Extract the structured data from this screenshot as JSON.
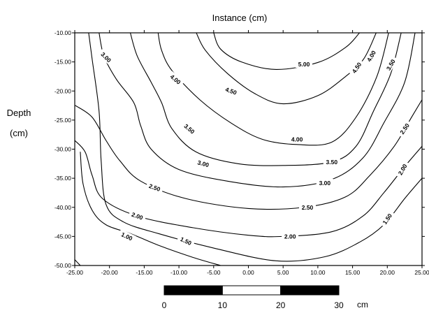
{
  "chart_data": {
    "type": "contour",
    "title": "Instance (cm)",
    "ylabel": [
      "Depth",
      "(cm)"
    ],
    "xlim": [
      -25,
      25
    ],
    "ylim": [
      -50,
      -10
    ],
    "x_ticks": [
      "-25.00",
      "-20.00",
      "-15.00",
      "-10.00",
      "-5.00",
      "0.00",
      "5.00",
      "10.00",
      "15.00",
      "20.00",
      "25.00"
    ],
    "y_ticks": [
      "-10.00",
      "-15.00",
      "-20.00",
      "-25.00",
      "-30.00",
      "-35.00",
      "-40.00",
      "-45.00",
      "-50.00"
    ],
    "contours": [
      {
        "level": "5.00",
        "points": [
          [
            -5,
            -10
          ],
          [
            -4,
            -12.8
          ],
          [
            -1,
            -15.0
          ],
          [
            4,
            -16.3
          ],
          [
            10,
            -15.1
          ],
          [
            14,
            -12.5
          ],
          [
            16,
            -10
          ]
        ],
        "label": [
          8,
          -15.4
        ],
        "label_angle": 0
      },
      {
        "level": "4.50",
        "points": [
          [
            -7.5,
            -10
          ],
          [
            -6.2,
            -13.0
          ],
          [
            -3.0,
            -17.0
          ],
          [
            1,
            -20.5
          ],
          [
            5,
            -22.2
          ],
          [
            10,
            -20.8
          ],
          [
            14,
            -17.5
          ],
          [
            16.6,
            -14.5
          ],
          [
            18.4,
            -10
          ]
        ],
        "label": [
          15.6,
          -16.0
        ],
        "label_angle": -55
      },
      {
        "level": "4.50",
        "points": [],
        "label": [
          -2.5,
          -20.0
        ],
        "label_angle": 20
      },
      {
        "level": "4.00",
        "points": [
          [
            -13,
            -10
          ],
          [
            -12.5,
            -13
          ],
          [
            -11,
            -16.5
          ],
          [
            -7,
            -21.5
          ],
          [
            -2.5,
            -25.5
          ],
          [
            2,
            -28.3
          ],
          [
            7,
            -29.2
          ],
          [
            12,
            -28.8
          ],
          [
            15.5,
            -24.5
          ],
          [
            18.5,
            -17.5
          ],
          [
            20.2,
            -10
          ]
        ],
        "label": [
          17.7,
          -14.0
        ],
        "label_angle": -60
      },
      {
        "level": "4.00",
        "points": [],
        "label": [
          -10.5,
          -18.0
        ],
        "label_angle": 40
      },
      {
        "level": "4.00",
        "points": [],
        "label": [
          7.0,
          -28.3
        ],
        "label_angle": 0
      },
      {
        "level": "3.50",
        "points": [
          [
            -17,
            -10
          ],
          [
            -16,
            -14
          ],
          [
            -14,
            -18.5
          ],
          [
            -12.5,
            -22
          ],
          [
            -11,
            -26.5
          ],
          [
            -7.5,
            -30.5
          ],
          [
            -1.5,
            -32.5
          ],
          [
            5,
            -32.8
          ],
          [
            12,
            -32.2
          ],
          [
            15.5,
            -29.5
          ],
          [
            18,
            -23.5
          ],
          [
            20.5,
            -17.0
          ],
          [
            22,
            -10
          ]
        ],
        "label": [
          20.5,
          -15.5
        ],
        "label_angle": -60
      },
      {
        "level": "3.50",
        "points": [],
        "label": [
          -8.5,
          -26.5
        ],
        "label_angle": 40
      },
      {
        "level": "3.50",
        "points": [],
        "label": [
          12.0,
          -32.2
        ],
        "label_angle": 0
      },
      {
        "level": "3.00",
        "points": [
          [
            -21.5,
            -10
          ],
          [
            -20.8,
            -14
          ],
          [
            -19,
            -18
          ],
          [
            -16.5,
            -22
          ],
          [
            -15.5,
            -26
          ],
          [
            -14,
            -30.0
          ],
          [
            -10,
            -33.5
          ],
          [
            -3,
            -35.5
          ],
          [
            5,
            -36.5
          ],
          [
            12,
            -35.2
          ],
          [
            16.5,
            -31.5
          ],
          [
            19.5,
            -25.5
          ],
          [
            22.5,
            -18.5
          ],
          [
            24,
            -10
          ]
        ],
        "label": [
          -20.5,
          -14.2
        ],
        "label_angle": 45
      },
      {
        "level": "3.00",
        "points": [],
        "label": [
          -6.5,
          -32.5
        ],
        "label_angle": 15
      },
      {
        "level": "3.00",
        "points": [],
        "label": [
          11.0,
          -35.8
        ],
        "label_angle": 0
      },
      {
        "level": "2.50",
        "points": [
          [
            -24.9,
            -22.5
          ],
          [
            -22.5,
            -24.5
          ],
          [
            -20.5,
            -28.5
          ],
          [
            -18.5,
            -32
          ],
          [
            -15.5,
            -35.5
          ],
          [
            -9,
            -38.5
          ],
          [
            0,
            -40.2
          ],
          [
            8,
            -40.0
          ],
          [
            14,
            -38.2
          ],
          [
            17.5,
            -34.5
          ],
          [
            21,
            -29.5
          ],
          [
            23.5,
            -24.5
          ],
          [
            25,
            -21.5
          ]
        ],
        "label": [
          -13.5,
          -36.6
        ],
        "label_angle": 20
      },
      {
        "level": "2.50",
        "points": [],
        "label": [
          8.5,
          -40.0
        ],
        "label_angle": 0
      },
      {
        "level": "2.50",
        "points": [],
        "label": [
          22.5,
          -26.5
        ],
        "label_angle": -55
      },
      {
        "level": "2.00",
        "points": [
          [
            -25,
            -28.5
          ],
          [
            -23.5,
            -30.5
          ],
          [
            -22.5,
            -34.5
          ],
          [
            -21,
            -38.5
          ],
          [
            -16,
            -41.5
          ],
          [
            -8,
            -43.5
          ],
          [
            0,
            -44.8
          ],
          [
            5,
            -45
          ],
          [
            12,
            -44.2
          ],
          [
            16.5,
            -41.5
          ],
          [
            19.5,
            -37.5
          ],
          [
            22.5,
            -33.0
          ],
          [
            25,
            -29.5
          ]
        ],
        "label": [
          -16.0,
          -41.5
        ],
        "label_angle": 20
      },
      {
        "level": "2.00",
        "points": [],
        "label": [
          6.0,
          -45.0
        ],
        "label_angle": 0
      },
      {
        "level": "2.00",
        "points": [],
        "label": [
          22.2,
          -33.5
        ],
        "label_angle": -60
      },
      {
        "level": "1.50",
        "points": [
          [
            -23,
            -10
          ],
          [
            -22.5,
            -14.5
          ],
          [
            -21.5,
            -23.5
          ],
          [
            -21.2,
            -32
          ],
          [
            -20.5,
            -39.5
          ],
          [
            -18,
            -42.5
          ],
          [
            -13,
            -44.5
          ],
          [
            -5,
            -47.0
          ],
          [
            4,
            -49.2
          ],
          [
            11,
            -48.5
          ],
          [
            16,
            -46.0
          ],
          [
            19.5,
            -43.0
          ],
          [
            22.5,
            -38.5
          ],
          [
            25,
            -35.0
          ]
        ],
        "label": [
          -9.0,
          -45.8
        ],
        "label_angle": 25
      },
      {
        "level": "1.50",
        "points": [],
        "label": [
          20.0,
          -42.0
        ],
        "label_angle": -55
      },
      {
        "level": "1.00",
        "points": [
          [
            -24.2,
            -30.5
          ],
          [
            -23.8,
            -36
          ],
          [
            -22.5,
            -40.5
          ],
          [
            -20.5,
            -43.0
          ],
          [
            -17,
            -44.5
          ],
          [
            -13,
            -46.5
          ],
          [
            -8,
            -48.6
          ],
          [
            -4,
            -50
          ]
        ],
        "label": [
          -17.5,
          -45.0
        ],
        "label_angle": 25
      },
      {
        "level": "",
        "points": [
          [
            -25,
            -49.0
          ],
          [
            -24.2,
            -50
          ]
        ],
        "label": null,
        "label_angle": 0
      }
    ],
    "scalebar": {
      "labels": [
        "0",
        "10",
        "20",
        "30"
      ],
      "unit": "cm",
      "segments": [
        "#000000",
        "#ffffff",
        "#000000"
      ]
    },
    "colors": {
      "line": "#000000",
      "frame": "#000000",
      "background": "#ffffff"
    }
  }
}
